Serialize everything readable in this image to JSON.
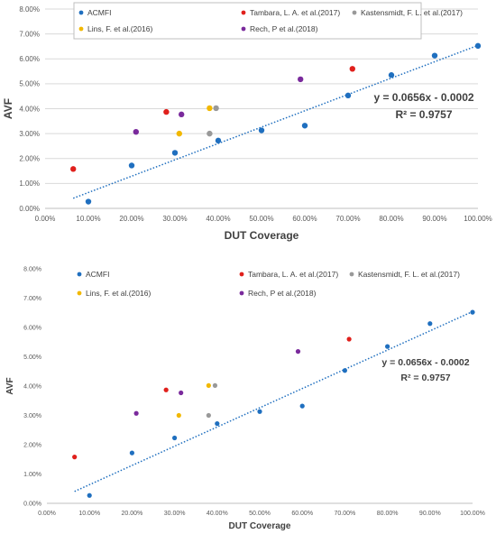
{
  "chart_data": [
    {
      "type": "scatter",
      "xlabel": "DUT Coverage",
      "ylabel": "AVF",
      "xlim": [
        0,
        1
      ],
      "ylim": [
        0,
        0.08
      ],
      "x_ticks": [
        "0.00%",
        "10.00%",
        "20.00%",
        "30.00%",
        "40.00%",
        "50.00%",
        "60.00%",
        "70.00%",
        "80.00%",
        "90.00%",
        "100.00%"
      ],
      "y_ticks": [
        "0.00%",
        "1.00%",
        "2.00%",
        "3.00%",
        "4.00%",
        "5.00%",
        "6.00%",
        "7.00%",
        "8.00%"
      ],
      "grid": "horizontal",
      "legend_position": "top",
      "series": [
        {
          "name": "ACMFI",
          "color": "#1f6fbf",
          "points": [
            [
              0.1,
              0.0027
            ],
            [
              0.2,
              0.0172
            ],
            [
              0.3,
              0.0223
            ],
            [
              0.4,
              0.0272
            ],
            [
              0.5,
              0.0313
            ],
            [
              0.6,
              0.0332
            ],
            [
              0.7,
              0.0453
            ],
            [
              0.8,
              0.0535
            ],
            [
              0.9,
              0.0613
            ],
            [
              1.0,
              0.0652
            ]
          ]
        },
        {
          "name": "Tambara, L. A. et al.(2017)",
          "color": "#e0201c",
          "points": [
            [
              0.065,
              0.0158
            ],
            [
              0.28,
              0.0387
            ],
            [
              0.71,
              0.056
            ]
          ]
        },
        {
          "name": "Kastensmidt, F. L. et al.(2017)",
          "color": "#999999",
          "points": [
            [
              0.38,
              0.03
            ],
            [
              0.395,
              0.0402
            ]
          ]
        },
        {
          "name": "Lins, F. et al.(2016)",
          "color": "#f2b800",
          "points": [
            [
              0.31,
              0.03
            ],
            [
              0.38,
              0.0402
            ]
          ]
        },
        {
          "name": "Rech, P et al.(2018)",
          "color": "#7a2a9c",
          "points": [
            [
              0.21,
              0.0307
            ],
            [
              0.315,
              0.0377
            ],
            [
              0.59,
              0.0518
            ]
          ]
        }
      ],
      "trendline": {
        "slope": 0.0656,
        "intercept": -0.0002,
        "x_range": [
          0.065,
          1.0
        ],
        "color": "#1f6fbf",
        "equation": "y = 0.0656x - 0.0002",
        "r2": "R² = 0.9757"
      }
    },
    {
      "type": "scatter",
      "xlabel": "DUT Coverage",
      "ylabel": "AVF",
      "xlim": [
        0,
        1
      ],
      "ylim": [
        0,
        0.08
      ],
      "x_ticks": [
        "0.00%",
        "10.00%",
        "20.00%",
        "30.00%",
        "40.00%",
        "50.00%",
        "60.00%",
        "70.00%",
        "80.00%",
        "90.00%",
        "100.00%"
      ],
      "y_ticks": [
        "0.00%",
        "1.00%",
        "2.00%",
        "3.00%",
        "4.00%",
        "5.00%",
        "6.00%",
        "7.00%",
        "8.00%"
      ],
      "grid": "none",
      "legend_position": "top",
      "series": [
        {
          "name": "ACMFI",
          "color": "#1f6fbf",
          "points": [
            [
              0.1,
              0.0027
            ],
            [
              0.2,
              0.0172
            ],
            [
              0.3,
              0.0223
            ],
            [
              0.4,
              0.0272
            ],
            [
              0.5,
              0.0313
            ],
            [
              0.6,
              0.0332
            ],
            [
              0.7,
              0.0453
            ],
            [
              0.8,
              0.0535
            ],
            [
              0.9,
              0.0613
            ],
            [
              1.0,
              0.0652
            ]
          ]
        },
        {
          "name": "Tambara, L. A. et al.(2017)",
          "color": "#e0201c",
          "points": [
            [
              0.065,
              0.0158
            ],
            [
              0.28,
              0.0387
            ],
            [
              0.71,
              0.056
            ]
          ]
        },
        {
          "name": "Kastensmidt, F. L. et al.(2017)",
          "color": "#999999",
          "points": [
            [
              0.38,
              0.03
            ],
            [
              0.395,
              0.0402
            ]
          ]
        },
        {
          "name": "Lins, F. et al.(2016)",
          "color": "#f2b800",
          "points": [
            [
              0.31,
              0.03
            ],
            [
              0.38,
              0.0402
            ]
          ]
        },
        {
          "name": "Rech, P et al.(2018)",
          "color": "#7a2a9c",
          "points": [
            [
              0.21,
              0.0307
            ],
            [
              0.315,
              0.0377
            ],
            [
              0.59,
              0.0518
            ]
          ]
        }
      ],
      "trendline": {
        "slope": 0.0656,
        "intercept": -0.0002,
        "x_range": [
          0.065,
          1.0
        ],
        "color": "#1f6fbf",
        "equation": "y = 0.0656x - 0.0002",
        "r2": "R² = 0.9757"
      }
    }
  ]
}
